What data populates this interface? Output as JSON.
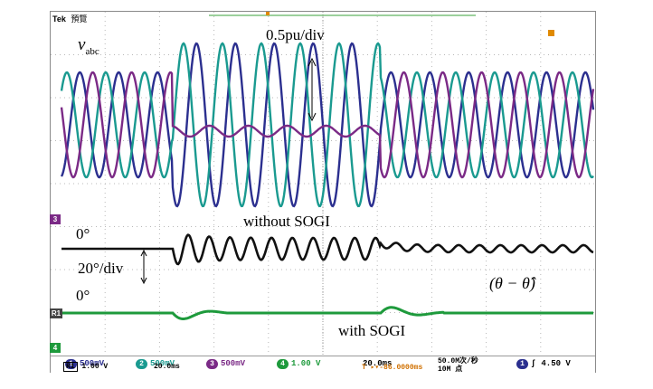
{
  "scope": {
    "brand": "Tek",
    "mode": "預覽",
    "trigger_marker": "T"
  },
  "labels": {
    "vabc_v": "v",
    "vabc_sub": "abc",
    "scale_top": "0.5pu/div",
    "without_sogi": "without SOGI",
    "zero_deg_1": "0°",
    "scale_mid": "20°/div",
    "theta_error": "(θ − θ̂)",
    "zero_deg_2": "0°",
    "with_sogi": "with SOGI"
  },
  "markers": {
    "ch3": "3",
    "r1": "R1",
    "ch4": "4"
  },
  "status": {
    "ch1_scale": "500mV",
    "ch2_scale": "500mV",
    "ch3_scale": "500mV",
    "ch4_scale": "1.00 V",
    "ch1_num": "1",
    "ch2_num": "2",
    "ch3_num": "3",
    "ch4_num": "4",
    "timebase": "20.0ms",
    "trigger_pos": "T ▸▾-86.0000ms",
    "sample_rate": "50.0M次/秒",
    "record_length": "10M 点",
    "trig_ch": "1",
    "trig_slope": "∫",
    "trig_level": "4.50 V",
    "ref_label": "R1",
    "ref_scale": "1.00 V",
    "ref_time": "20.0ms"
  },
  "colors": {
    "ch1_blue": "#2b2f8f",
    "ch2_teal": "#1a9a90",
    "ch3_purple": "#7b2a86",
    "ch4_green": "#1e9a3c",
    "ref_black": "#111111",
    "grid": "#b8b8b8"
  }
}
